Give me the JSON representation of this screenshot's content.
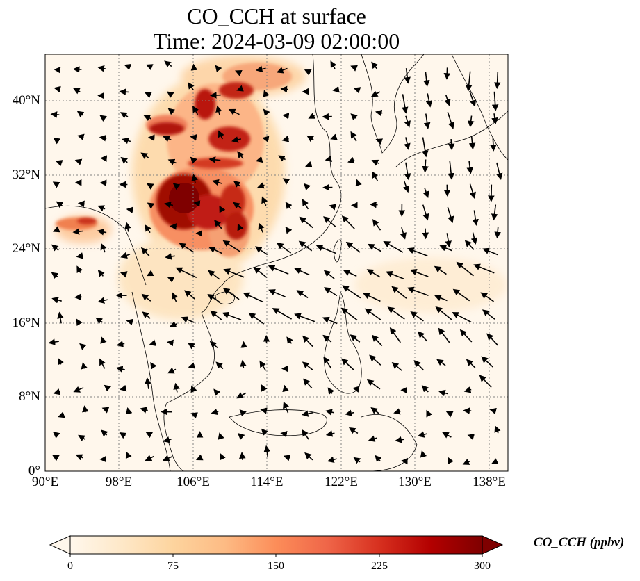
{
  "title": {
    "line1": "CO_CCH at surface",
    "line2": "Time: 2024-03-09 02:00:00"
  },
  "axes": {
    "lon_labels": [
      "90°E",
      "98°E",
      "106°E",
      "114°E",
      "122°E",
      "130°E",
      "138°E"
    ],
    "lat_labels": [
      "40°N",
      "32°N",
      "24°N",
      "16°N",
      "8°N",
      "0°"
    ],
    "lon_range": [
      90,
      140
    ],
    "lat_range": [
      0,
      45
    ]
  },
  "colorbar": {
    "label": "CO_CCH (ppbv)",
    "ticks": [
      "0",
      "75",
      "150",
      "225",
      "300"
    ],
    "range": [
      0,
      300
    ],
    "extend": "both",
    "colormap": "OrRd",
    "colors": [
      "#fff7ec",
      "#fee8c8",
      "#fdd49e",
      "#fdbb84",
      "#fc8d59",
      "#ef6548",
      "#d7301f",
      "#b30000",
      "#7f0000"
    ]
  },
  "map": {
    "gridlines": "dotted",
    "high_concentration_region": "Sichuan Basin / central China",
    "vector_field": "surface wind arrows"
  }
}
